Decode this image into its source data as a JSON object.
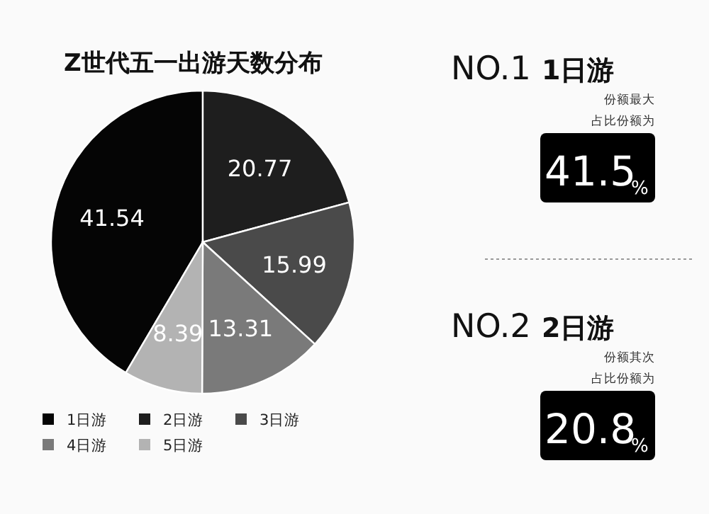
{
  "chart_data": [
    {
      "type": "pie",
      "title": "Z世代五一出游天数分布",
      "categories": [
        "1日游",
        "2日游",
        "3日游",
        "4日游",
        "5日游"
      ],
      "values": [
        41.54,
        20.77,
        15.99,
        13.31,
        8.39
      ],
      "colors": [
        "#050505",
        "#1e1e1e",
        "#4a4a4a",
        "#7a7a7a",
        "#b3b3b3"
      ],
      "data_labels": true,
      "legend": "bottom"
    },
    {
      "type": "other",
      "annotations": [
        "NO.1",
        "1日游",
        "份额最大",
        "占比份额为",
        "41.5",
        "%",
        "NO.2",
        "2日游",
        "份额其次",
        "占比份额为",
        "20.8",
        "%"
      ]
    }
  ]
}
